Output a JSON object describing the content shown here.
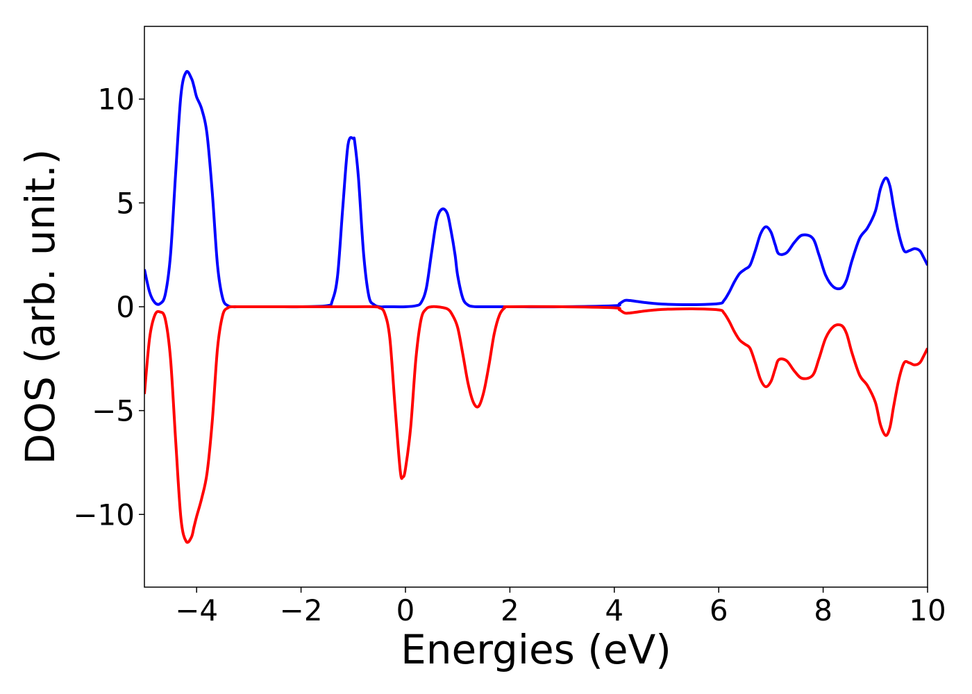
{
  "chart_data": {
    "type": "line",
    "title": "",
    "xlabel": "Energies (eV)",
    "ylabel": "DOS (arb. unit.)",
    "xlim": [
      -5,
      10
    ],
    "ylim": [
      -13.5,
      13.5
    ],
    "x_ticks": [
      -4,
      -2,
      0,
      2,
      4,
      6,
      8,
      10
    ],
    "y_ticks": [
      -10,
      -5,
      0,
      5,
      10
    ],
    "x_tick_labels": [
      "−4",
      "−2",
      "0",
      "2",
      "4",
      "6",
      "8",
      "10"
    ],
    "y_tick_labels": [
      "−10",
      "−5",
      "0",
      "5",
      "10"
    ],
    "grid": false,
    "legend": "none",
    "series": [
      {
        "color": "#0000ff",
        "x": [
          -5.0,
          -4.9,
          -4.8,
          -4.7,
          -4.6,
          -4.5,
          -4.4,
          -4.3,
          -4.2,
          -4.1,
          -4.05,
          -4.0,
          -3.9,
          -3.8,
          -3.7,
          -3.6,
          -3.5,
          -3.4,
          -3.3,
          -3.2,
          -3.1,
          -3.0,
          -2.5,
          -2.0,
          -1.5,
          -1.4,
          -1.3,
          -1.2,
          -1.1,
          -1.0,
          -0.97,
          -0.9,
          -0.8,
          -0.7,
          -0.6,
          -0.5,
          -0.4,
          -0.3,
          0.0,
          0.2,
          0.3,
          0.4,
          0.5,
          0.6,
          0.7,
          0.8,
          0.87,
          0.95,
          1.0,
          1.1,
          1.2,
          1.3,
          1.4,
          1.5,
          2.0,
          3.0,
          4.0,
          4.1,
          4.2,
          4.3,
          4.45,
          4.6,
          4.8,
          5.0,
          5.5,
          6.0,
          6.1,
          6.2,
          6.3,
          6.4,
          6.5,
          6.6,
          6.7,
          6.8,
          6.9,
          7.0,
          7.08,
          7.15,
          7.3,
          7.45,
          7.6,
          7.8,
          7.92,
          8.05,
          8.2,
          8.35,
          8.45,
          8.55,
          8.7,
          8.85,
          9.0,
          9.1,
          9.2,
          9.28,
          9.35,
          9.45,
          9.55,
          9.65,
          9.75,
          9.85,
          9.92,
          10.0
        ],
        "y": [
          1.8,
          0.7,
          0.2,
          0.15,
          0.6,
          2.5,
          6.5,
          10.2,
          11.3,
          11.0,
          10.6,
          10.1,
          9.5,
          8.3,
          5.5,
          2.0,
          0.4,
          0.05,
          0.0,
          0.0,
          0.0,
          0.0,
          0.0,
          0.0,
          0.05,
          0.3,
          1.5,
          4.8,
          7.8,
          8.1,
          7.9,
          6.2,
          2.5,
          0.5,
          0.1,
          0.0,
          0.0,
          0.0,
          0.0,
          0.05,
          0.2,
          0.9,
          2.6,
          4.2,
          4.7,
          4.5,
          3.7,
          2.5,
          1.5,
          0.4,
          0.08,
          0.01,
          0.0,
          0.0,
          0.0,
          0.0,
          0.05,
          0.15,
          0.3,
          0.3,
          0.25,
          0.2,
          0.15,
          0.12,
          0.1,
          0.15,
          0.3,
          0.7,
          1.2,
          1.6,
          1.8,
          2.0,
          2.7,
          3.5,
          3.85,
          3.6,
          3.0,
          2.55,
          2.6,
          3.1,
          3.45,
          3.3,
          2.5,
          1.5,
          0.95,
          0.9,
          1.3,
          2.2,
          3.3,
          3.8,
          4.6,
          5.7,
          6.2,
          5.8,
          4.8,
          3.5,
          2.7,
          2.7,
          2.8,
          2.7,
          2.4,
          2.0
        ]
      },
      {
        "color": "#ff0000",
        "x": [
          -5.0,
          -4.9,
          -4.8,
          -4.7,
          -4.6,
          -4.5,
          -4.4,
          -4.3,
          -4.2,
          -4.1,
          -4.05,
          -4.0,
          -3.9,
          -3.8,
          -3.7,
          -3.6,
          -3.5,
          -3.4,
          -3.3,
          -3.2,
          -3.1,
          -3.0,
          -2.0,
          -1.0,
          -0.6,
          -0.5,
          -0.4,
          -0.3,
          -0.2,
          -0.1,
          -0.05,
          0.0,
          0.1,
          0.2,
          0.3,
          0.4,
          0.5,
          0.6,
          0.8,
          0.9,
          1.0,
          1.1,
          1.2,
          1.3,
          1.4,
          1.5,
          1.6,
          1.7,
          1.8,
          1.9,
          2.0,
          3.0,
          4.0,
          4.1,
          4.2,
          4.3,
          4.45,
          4.6,
          4.8,
          5.0,
          5.5,
          6.0,
          6.1,
          6.2,
          6.3,
          6.4,
          6.5,
          6.6,
          6.7,
          6.8,
          6.9,
          7.0,
          7.08,
          7.15,
          7.3,
          7.45,
          7.6,
          7.8,
          7.92,
          8.05,
          8.2,
          8.35,
          8.45,
          8.55,
          8.7,
          8.85,
          9.0,
          9.1,
          9.2,
          9.28,
          9.35,
          9.45,
          9.55,
          9.65,
          9.75,
          9.85,
          9.92,
          10.0
        ],
        "y": [
          -4.2,
          -1.5,
          -0.4,
          -0.25,
          -0.6,
          -2.5,
          -6.5,
          -10.2,
          -11.3,
          -11.1,
          -10.6,
          -10.1,
          -9.2,
          -8.0,
          -5.5,
          -2.0,
          -0.4,
          -0.05,
          0.0,
          0.0,
          0.0,
          0.0,
          0.0,
          0.0,
          0.0,
          -0.05,
          -0.3,
          -1.5,
          -4.8,
          -7.9,
          -8.2,
          -7.8,
          -5.8,
          -2.5,
          -0.6,
          -0.1,
          0.0,
          0.0,
          -0.1,
          -0.4,
          -1.0,
          -2.3,
          -3.7,
          -4.6,
          -4.8,
          -4.1,
          -2.8,
          -1.3,
          -0.4,
          -0.05,
          0.0,
          0.0,
          -0.05,
          -0.15,
          -0.3,
          -0.3,
          -0.25,
          -0.2,
          -0.15,
          -0.12,
          -0.1,
          -0.15,
          -0.3,
          -0.7,
          -1.2,
          -1.6,
          -1.8,
          -2.0,
          -2.7,
          -3.5,
          -3.85,
          -3.6,
          -3.0,
          -2.55,
          -2.6,
          -3.1,
          -3.45,
          -3.3,
          -2.5,
          -1.5,
          -0.95,
          -0.9,
          -1.3,
          -2.2,
          -3.3,
          -3.8,
          -4.6,
          -5.7,
          -6.2,
          -5.8,
          -4.8,
          -3.5,
          -2.7,
          -2.7,
          -2.8,
          -2.7,
          -2.4,
          -2.0
        ]
      }
    ]
  }
}
